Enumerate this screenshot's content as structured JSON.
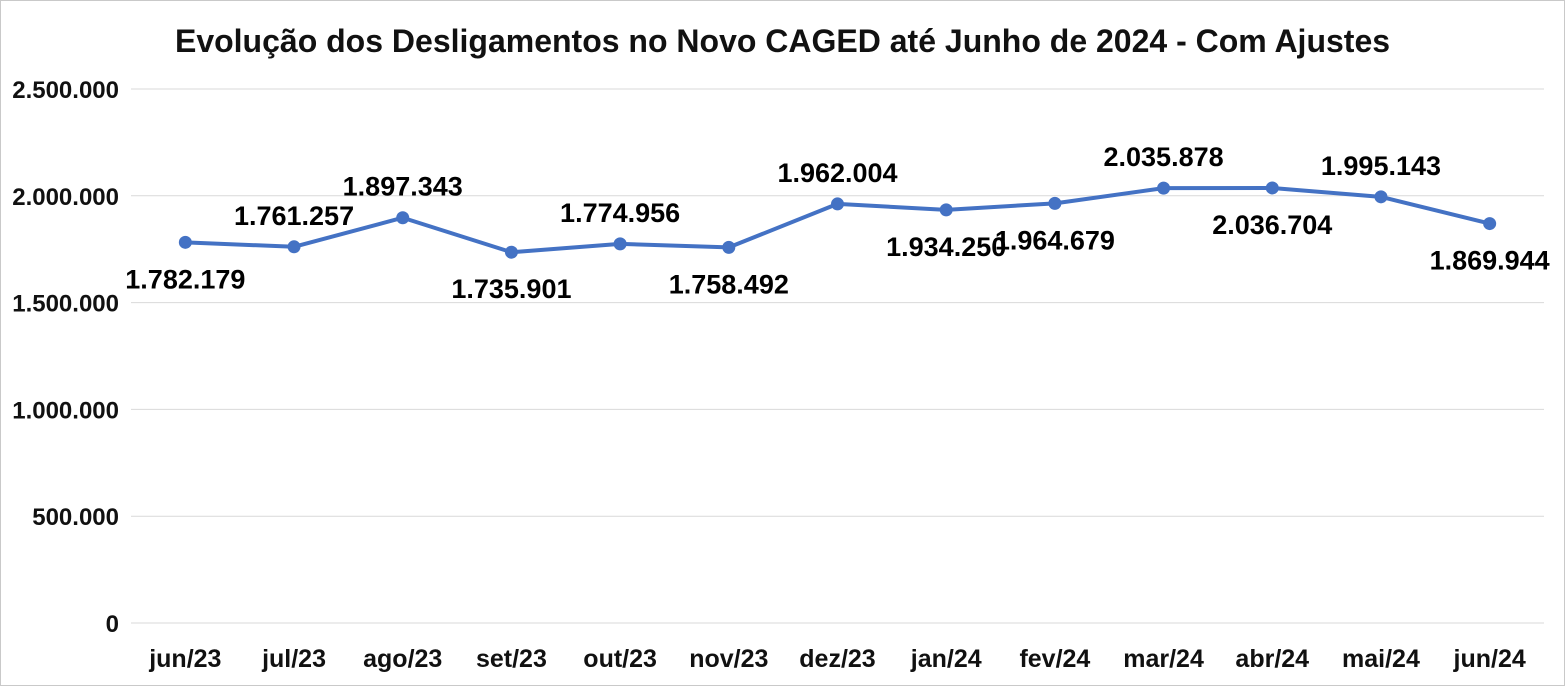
{
  "chart_data": {
    "type": "line",
    "title": "Evolução dos Desligamentos no Novo CAGED até Junho de 2024 - Com Ajustes",
    "categories": [
      "jun/23",
      "jul/23",
      "ago/23",
      "set/23",
      "out/23",
      "nov/23",
      "dez/23",
      "jan/24",
      "fev/24",
      "mar/24",
      "abr/24",
      "mai/24",
      "jun/24"
    ],
    "values": [
      1782179,
      1761257,
      1897343,
      1735901,
      1774956,
      1758492,
      1962004,
      1934250,
      1964679,
      2035878,
      2036704,
      1995143,
      1869944
    ],
    "labels": [
      "1.782.179",
      "1.761.257",
      "1.897.343",
      "1.735.901",
      "1.774.956",
      "1.758.492",
      "1.962.004",
      "1.934.250",
      "1.964.679",
      "2.035.878",
      "2.036.704",
      "1.995.143",
      "1.869.944"
    ],
    "label_positions": [
      "below",
      "above",
      "above",
      "below",
      "above",
      "below",
      "above",
      "below",
      "below",
      "above",
      "below",
      "above",
      "below"
    ],
    "xlabel": "",
    "ylabel": "",
    "ylim": [
      0,
      2500000
    ],
    "y_ticks": [
      0,
      500000,
      1000000,
      1500000,
      2000000,
      2500000
    ],
    "y_tick_labels": [
      "0",
      "500.000",
      "1.000.000",
      "1.500.000",
      "2.000.000",
      "2.500.000"
    ],
    "grid": true,
    "legend": "none",
    "line_color": "#4472C4",
    "marker_color": "#4472C4",
    "label_color": "#000000",
    "grid_color": "#d9d9d9"
  }
}
